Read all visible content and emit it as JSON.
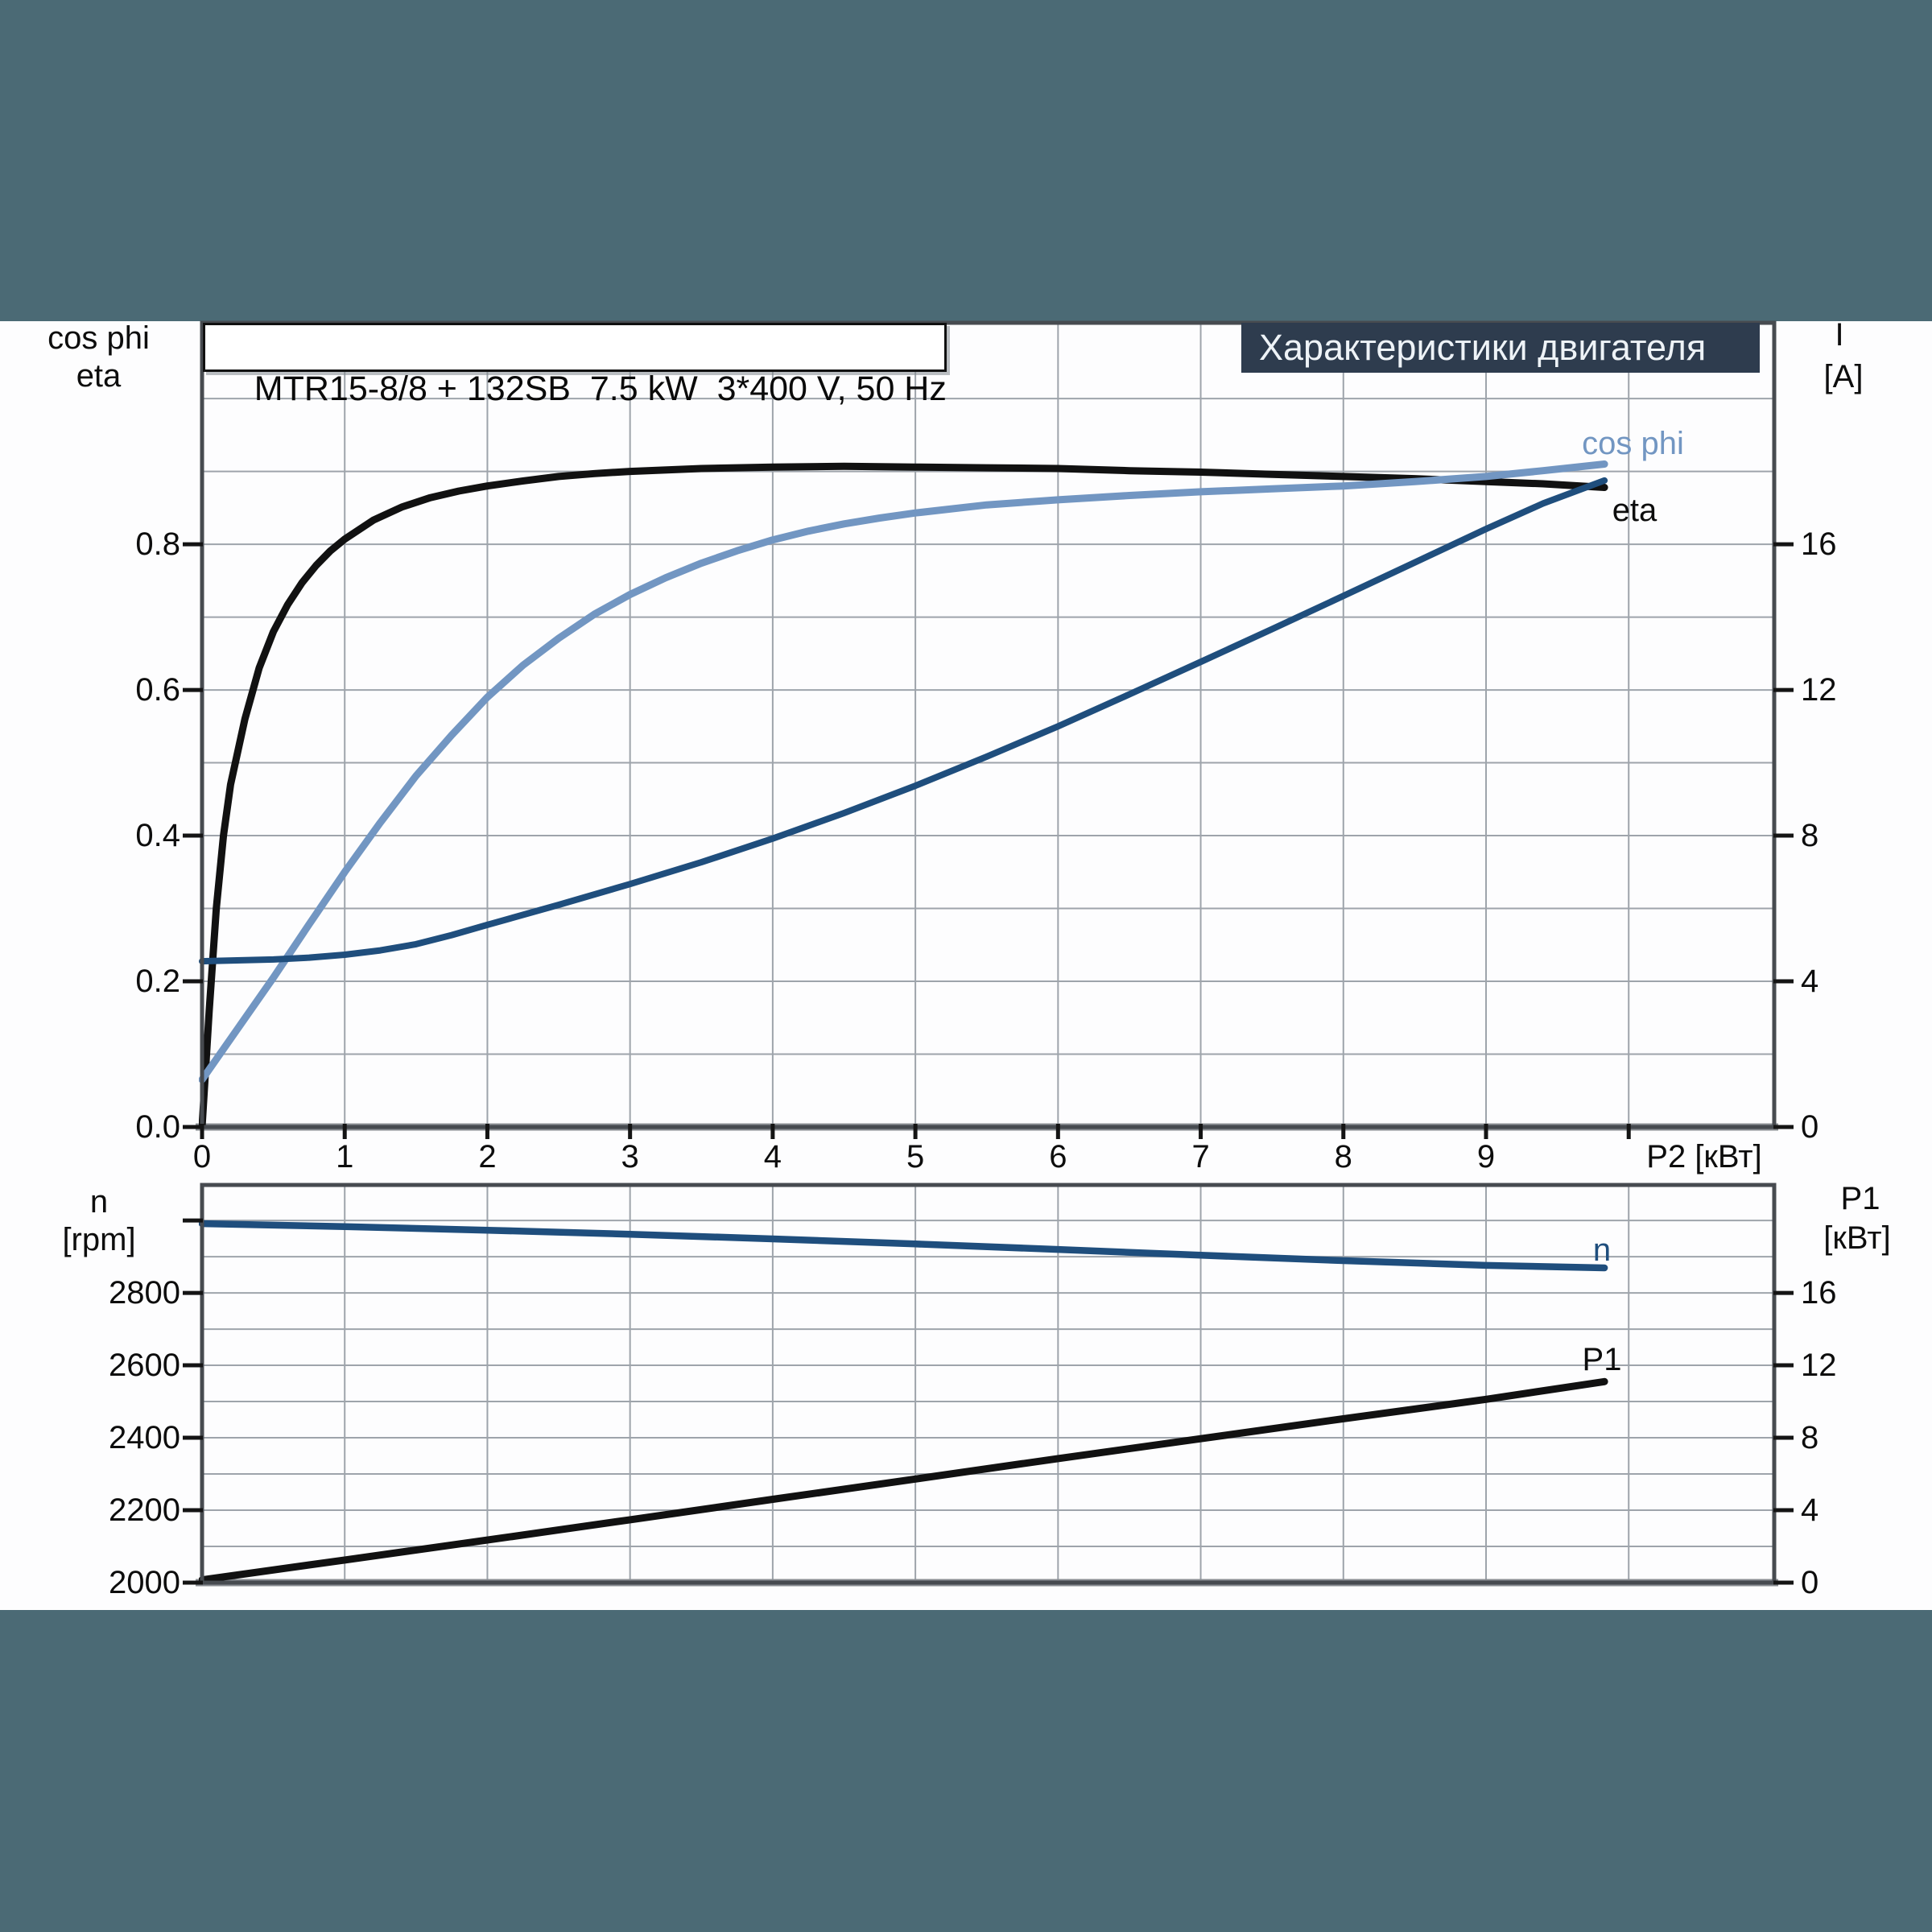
{
  "header": {
    "banner": "Характеристики двигателя"
  },
  "colors": {
    "background": "#4b6a75",
    "content_background": "#fdfdfe",
    "banner_bg": "#2e3c4e",
    "banner_text": "#eef3f7",
    "frame": "#474b50",
    "axis_line": "#8a8e93",
    "grid": "#9ea4ab",
    "tick_mark": "#141414",
    "eta": "#111111",
    "cos_phi": "#7296c2",
    "current": "#1f4e7d",
    "speed": "#1f4e7d",
    "p1": "#111111"
  },
  "labels": {
    "axis_top_left_1": "cos phi",
    "axis_top_left_2": "eta",
    "axis_top_right_1": "I",
    "axis_top_right_2": "[A]",
    "x_axis_label": "P2 [кВт]",
    "axis_bot_left_1": "n",
    "axis_bot_left_2": "[rpm]",
    "axis_bot_right_1": "P1",
    "axis_bot_right_2": "[кВт]",
    "curve_cos_phi": "cos phi",
    "curve_eta": "eta",
    "curve_n": "n",
    "curve_p1": "P1"
  },
  "chart_data": [
    {
      "type": "line",
      "title": "MTR15-8/8 + 132SB  7.5 kW  3*400 V, 50 Hz",
      "x_axis": {
        "label": "P2 [кВт]",
        "min": 0,
        "max": 11.02,
        "tick_values": [
          0,
          1,
          2,
          3,
          4,
          5,
          6,
          7,
          8,
          9
        ],
        "tick_labels": [
          "0",
          "1",
          "2",
          "3",
          "4",
          "5",
          "6",
          "7",
          "8",
          "9"
        ],
        "extra_ticks": [
          10
        ],
        "grid_step": 1
      },
      "y_left": {
        "label": "cos phi / eta",
        "min": 0,
        "max": 1.104,
        "tick_values": [
          0.0,
          0.2,
          0.4,
          0.6,
          0.8
        ],
        "tick_labels": [
          "0.0",
          "0.2",
          "0.4",
          "0.6",
          "0.8"
        ],
        "grid_step": 0.1
      },
      "y_right": {
        "label": "I [A]",
        "min": 0,
        "max": 22.08,
        "tick_values": [
          0,
          4,
          8,
          12,
          16
        ],
        "tick_labels": [
          "0",
          "4",
          "8",
          "12",
          "16"
        ]
      },
      "series": [
        {
          "name": "eta",
          "axis": "left",
          "color_key": "eta",
          "points": [
            [
              0,
              0
            ],
            [
              0.05,
              0.16
            ],
            [
              0.1,
              0.3
            ],
            [
              0.15,
              0.4
            ],
            [
              0.2,
              0.47
            ],
            [
              0.3,
              0.56
            ],
            [
              0.4,
              0.63
            ],
            [
              0.5,
              0.68
            ],
            [
              0.6,
              0.717
            ],
            [
              0.7,
              0.747
            ],
            [
              0.8,
              0.771
            ],
            [
              0.9,
              0.791
            ],
            [
              1,
              0.807
            ],
            [
              1.2,
              0.833
            ],
            [
              1.4,
              0.851
            ],
            [
              1.6,
              0.864
            ],
            [
              1.8,
              0.873
            ],
            [
              2,
              0.88
            ],
            [
              2.25,
              0.887
            ],
            [
              2.5,
              0.893
            ],
            [
              2.75,
              0.897
            ],
            [
              3,
              0.9
            ],
            [
              3.5,
              0.904
            ],
            [
              4,
              0.906
            ],
            [
              4.5,
              0.907
            ],
            [
              5,
              0.906
            ],
            [
              5.5,
              0.905
            ],
            [
              6,
              0.904
            ],
            [
              6.5,
              0.901
            ],
            [
              7,
              0.899
            ],
            [
              7.5,
              0.896
            ],
            [
              8,
              0.893
            ],
            [
              8.5,
              0.89
            ],
            [
              9,
              0.886
            ],
            [
              9.4,
              0.883
            ],
            [
              9.83,
              0.878
            ]
          ]
        },
        {
          "name": "cos phi",
          "axis": "left",
          "color_key": "cos_phi",
          "points": [
            [
              0,
              0.065
            ],
            [
              0.25,
              0.135
            ],
            [
              0.5,
              0.205
            ],
            [
              0.75,
              0.278
            ],
            [
              1,
              0.35
            ],
            [
              1.25,
              0.418
            ],
            [
              1.5,
              0.482
            ],
            [
              1.75,
              0.538
            ],
            [
              2,
              0.59
            ],
            [
              2.25,
              0.634
            ],
            [
              2.5,
              0.671
            ],
            [
              2.75,
              0.704
            ],
            [
              3,
              0.731
            ],
            [
              3.25,
              0.754
            ],
            [
              3.5,
              0.774
            ],
            [
              3.75,
              0.791
            ],
            [
              4,
              0.806
            ],
            [
              4.25,
              0.818
            ],
            [
              4.5,
              0.828
            ],
            [
              4.75,
              0.836
            ],
            [
              5,
              0.843
            ],
            [
              5.5,
              0.854
            ],
            [
              6,
              0.861
            ],
            [
              6.5,
              0.867
            ],
            [
              7,
              0.872
            ],
            [
              7.5,
              0.876
            ],
            [
              8,
              0.88
            ],
            [
              8.5,
              0.886
            ],
            [
              9,
              0.893
            ],
            [
              9.4,
              0.901
            ],
            [
              9.83,
              0.91
            ]
          ]
        },
        {
          "name": "I",
          "axis": "right",
          "color_key": "current",
          "points": [
            [
              0,
              4.55
            ],
            [
              0.5,
              4.6
            ],
            [
              0.75,
              4.65
            ],
            [
              1,
              4.73
            ],
            [
              1.25,
              4.85
            ],
            [
              1.5,
              5.02
            ],
            [
              1.75,
              5.27
            ],
            [
              2,
              5.55
            ],
            [
              2.5,
              6.1
            ],
            [
              3,
              6.67
            ],
            [
              3.5,
              7.27
            ],
            [
              4,
              7.92
            ],
            [
              4.5,
              8.62
            ],
            [
              5,
              9.37
            ],
            [
              5.5,
              10.17
            ],
            [
              6,
              11.0
            ],
            [
              6.5,
              11.88
            ],
            [
              7,
              12.77
            ],
            [
              7.5,
              13.67
            ],
            [
              8,
              14.58
            ],
            [
              8.5,
              15.5
            ],
            [
              9,
              16.42
            ],
            [
              9.4,
              17.12
            ],
            [
              9.83,
              17.75
            ]
          ]
        }
      ]
    },
    {
      "type": "line",
      "x_axis": {
        "min": 0,
        "max": 11.02,
        "tick_values": [],
        "tick_labels": [],
        "extra_ticks": [],
        "grid_step": 1
      },
      "y_left": {
        "label": "n [rpm]",
        "min": 2000,
        "max": 3098,
        "tick_values": [
          2000,
          2200,
          2400,
          2600,
          2800
        ],
        "tick_labels": [
          "2000",
          "2200",
          "2400",
          "2600",
          "2800"
        ],
        "extra_ticks": [
          3000
        ],
        "grid_step": 100
      },
      "y_right": {
        "label": "P1 [кВт]",
        "min": 0,
        "max": 21.96,
        "tick_values": [
          0,
          4,
          8,
          12,
          16
        ],
        "tick_labels": [
          "0",
          "4",
          "8",
          "12",
          "16"
        ]
      },
      "series": [
        {
          "name": "n",
          "axis": "left",
          "color_key": "speed",
          "points": [
            [
              0,
              2991
            ],
            [
              1,
              2983
            ],
            [
              2,
              2973
            ],
            [
              3,
              2962
            ],
            [
              4,
              2949
            ],
            [
              5,
              2935
            ],
            [
              6,
              2920
            ],
            [
              7,
              2904
            ],
            [
              8,
              2889
            ],
            [
              9,
              2876
            ],
            [
              9.83,
              2869
            ]
          ]
        },
        {
          "name": "P1",
          "axis": "right",
          "color_key": "p1",
          "points": [
            [
              0,
              0.15
            ],
            [
              1,
              1.25
            ],
            [
              2,
              2.35
            ],
            [
              3,
              3.47
            ],
            [
              4,
              4.6
            ],
            [
              5,
              5.72
            ],
            [
              6,
              6.85
            ],
            [
              7,
              7.95
            ],
            [
              8,
              9.05
            ],
            [
              9,
              10.12
            ],
            [
              9.83,
              11.1
            ]
          ]
        }
      ]
    }
  ]
}
